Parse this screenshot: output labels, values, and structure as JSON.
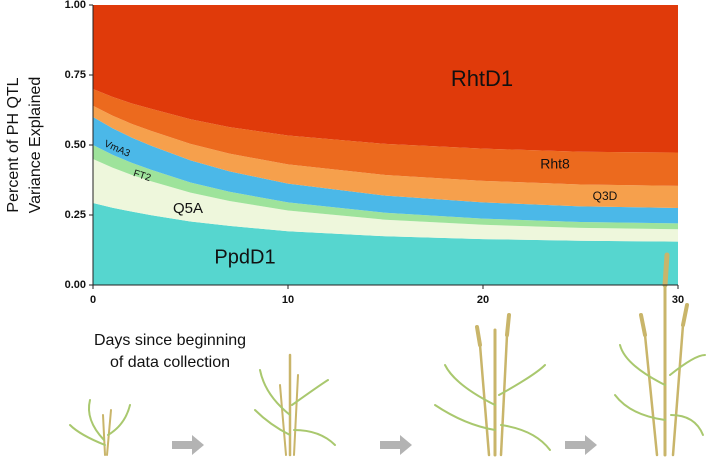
{
  "chart_data": {
    "type": "area",
    "y_label": [
      "Percent of PH QTL",
      "Variance Explained"
    ],
    "annotation": [
      "Days since beginning",
      "of data collection"
    ],
    "x": [
      0,
      1,
      2,
      3,
      5,
      7,
      10,
      15,
      20,
      25,
      30
    ],
    "stacked": true,
    "series": [
      {
        "name": "PpdD1",
        "color": "#56d6cf",
        "values": [
          0.293,
          0.276,
          0.262,
          0.249,
          0.227,
          0.211,
          0.192,
          0.174,
          0.164,
          0.158,
          0.155
        ]
      },
      {
        "name": "Q5A",
        "color": "#eef7dc",
        "values": [
          0.157,
          0.143,
          0.131,
          0.121,
          0.103,
          0.089,
          0.074,
          0.059,
          0.051,
          0.046,
          0.044
        ]
      },
      {
        "name": "FT2",
        "color": "#9ee39b",
        "values": [
          0.05,
          0.046,
          0.043,
          0.041,
          0.036,
          0.033,
          0.029,
          0.025,
          0.022,
          0.021,
          0.021
        ]
      },
      {
        "name": "VmA3",
        "color": "#4bb8e8",
        "values": [
          0.1,
          0.095,
          0.09,
          0.086,
          0.079,
          0.073,
          0.067,
          0.061,
          0.058,
          0.056,
          0.055
        ]
      },
      {
        "name": "Q3D",
        "color": "#f6a04c",
        "values": [
          0.04,
          0.045,
          0.049,
          0.053,
          0.059,
          0.063,
          0.069,
          0.074,
          0.077,
          0.078,
          0.079
        ]
      },
      {
        "name": "Rht8",
        "color": "#ec6a1e",
        "values": [
          0.06,
          0.067,
          0.073,
          0.079,
          0.088,
          0.095,
          0.103,
          0.111,
          0.115,
          0.117,
          0.119
        ]
      },
      {
        "name": "RhtD1",
        "color": "#e03a0a",
        "values": [
          0.3,
          0.328,
          0.352,
          0.371,
          0.408,
          0.436,
          0.466,
          0.496,
          0.513,
          0.524,
          0.527
        ]
      }
    ],
    "xlim": [
      0,
      30
    ],
    "xticks": [
      0,
      10,
      20,
      30
    ],
    "ylim": [
      0,
      1
    ],
    "yticks": [
      {
        "value": 0,
        "label": "0.00"
      },
      {
        "value": 0.25,
        "label": "0.25"
      },
      {
        "value": 0.5,
        "label": "0.50"
      },
      {
        "value": 0.75,
        "label": "0.75"
      },
      {
        "value": 1,
        "label": "1.00"
      }
    ]
  }
}
